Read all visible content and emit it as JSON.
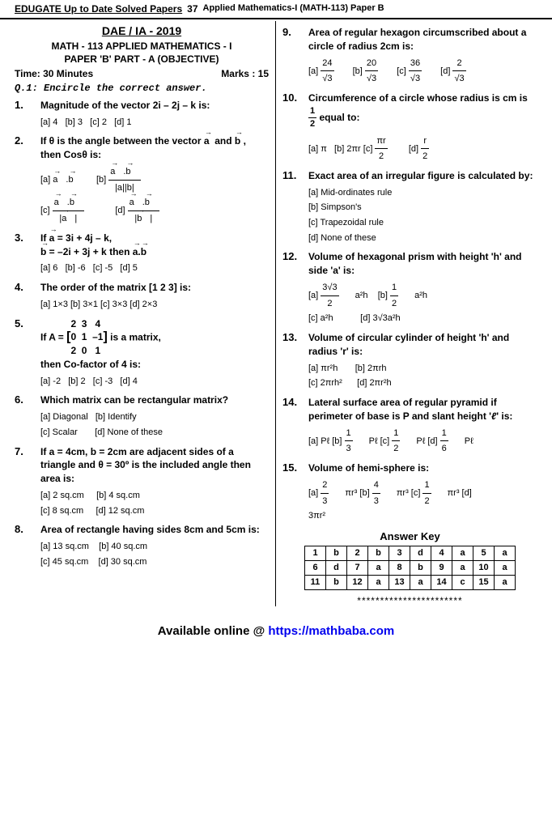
{
  "header": {
    "left": "EDUGATE Up to Date Solved Papers",
    "page": "37",
    "right": "Applied Mathematics-I (MATH-113) Paper B"
  },
  "exam": {
    "title1": "DAE / IA - 2019",
    "title2": "MATH - 113  APPLIED MATHEMATICS - I",
    "title3": "PAPER 'B' PART - A (OBJECTIVE)",
    "time": "Time: 30 Minutes",
    "marks": "Marks : 15",
    "q1": "Q.1: Encircle the correct answer."
  },
  "left_questions": [
    {
      "num": "1.",
      "text": "Magnitude of the vector <b>2i – 2j – k</b> is:",
      "opts": "[a] 4&nbsp;&nbsp;&nbsp;[b] 3&nbsp;&nbsp;&nbsp;[c] 2&nbsp;&nbsp;&nbsp;[d] 1"
    },
    {
      "num": "2.",
      "text": "If θ is the angle between the vector <span class='vec'>a</span>&nbsp; and <span class='vec'>b</span>&nbsp;, then Cosθ is:",
      "opts": "[a] <span class='vec'>a</span>.<span class='vec'>b</span>&nbsp;&nbsp;&nbsp;&nbsp;&nbsp;&nbsp;[b] <span class='frac'><span class='num'><span class='vec'>a</span>.<span class='vec'>b</span></span><span class='den'>|a||b|</span></span><br>[c] <span class='frac'><span class='num'><span class='vec'>a</span>.<span class='vec'>b</span></span><span class='den'>|<span class='vec'>a</span>|</span></span>&nbsp;&nbsp;&nbsp;&nbsp;&nbsp;&nbsp;[d] <span class='frac'><span class='num'><span class='vec'>a</span>.<span class='vec'>b</span></span><span class='den'>|<span class='vec'>b</span>|</span></span>"
    },
    {
      "num": "3.",
      "text": "If <span class='vec'>a</span> = 3i + 4j – k,<br><span class='vec'>b</span> = –2i + 3j + k then <span class='vec'>a</span>.<span class='vec'>b</span>",
      "opts": "[a] 6&nbsp;&nbsp;&nbsp;[b] -6&nbsp;&nbsp;&nbsp;[c] -5&nbsp;&nbsp;&nbsp;[d] 5"
    },
    {
      "num": "4.",
      "text": "The order of the matrix [1  2  3] is:",
      "opts": "[a] 1×3  [b] 3×1  [c] 3×3  [d] 2×3"
    },
    {
      "num": "5.",
      "text": "If A = <span style='font-size:16px'>[</span><span style='display:inline-block;vertical-align:middle'><span style='display:block'>2&nbsp;&nbsp;3&nbsp;&nbsp;&nbsp;4</span><span style='display:block'>0&nbsp;&nbsp;1&nbsp;&nbsp;–1</span><span style='display:block'>2&nbsp;&nbsp;0&nbsp;&nbsp;&nbsp;1</span></span><span style='font-size:16px'>]</span> is a matrix,<br>then Co-factor of 4 is:",
      "opts": "[a] -2&nbsp;&nbsp;&nbsp;[b] 2&nbsp;&nbsp;&nbsp;[c] -3&nbsp;&nbsp;&nbsp;[d] 4"
    },
    {
      "num": "6.",
      "text": "Which matrix can be rectangular matrix?",
      "opts": "[a] Diagonal&nbsp;&nbsp;&nbsp;[b] Identify<br>[c] Scalar&nbsp;&nbsp;&nbsp;&nbsp;&nbsp;&nbsp;&nbsp;[d] None of these"
    },
    {
      "num": "7.",
      "text": "If a = 4cm, b = 2cm are adjacent sides of a triangle and θ = 30º is the included angle then area is:",
      "opts": "[a] 2 sq.cm&nbsp;&nbsp;&nbsp;&nbsp;&nbsp;[b] 4 sq.cm<br>[c] 8 sq.cm&nbsp;&nbsp;&nbsp;&nbsp;&nbsp;[d] 12 sq.cm"
    },
    {
      "num": "8.",
      "text": "Area of rectangle having sides 8cm and 5cm is:",
      "opts": "[a] 13 sq.cm&nbsp;&nbsp;&nbsp;&nbsp;[b] 40 sq.cm<br>[c] 45 sq.cm&nbsp;&nbsp;&nbsp;&nbsp;[d] 30 sq.cm"
    }
  ],
  "right_questions": [
    {
      "num": "9.",
      "text": "Area of regular hexagon circumscribed about a circle of radius 2cm is:",
      "opts": "[a] <span class='frac'><span class='num'>24</span><span class='den'>√3</span></span> [b] <span class='frac'><span class='num'>20</span><span class='den'>√3</span></span> [c] <span class='frac'><span class='num'>36</span><span class='den'>√3</span></span> [d] <span class='frac'><span class='num'>2</span><span class='den'>√3</span></span>"
    },
    {
      "num": "10.",
      "text": "Circumference of a circle whose radius is cm is <span class='frac'><span class='num'>1</span><span class='den'>2</span></span> equal to:",
      "opts": "[a] π&nbsp;&nbsp;&nbsp;[b] 2πr&nbsp;[c] <span class='frac'><span class='num'>πr</span><span class='den'>2</span></span>&nbsp;&nbsp;[d] <span class='frac'><span class='num'>r</span><span class='den'>2</span></span>"
    },
    {
      "num": "11.",
      "text": "Exact area of an irregular figure is calculated by:",
      "opts": "[a] Mid-ordinates rule<br>[b] Simpson's<br>[c] Trapezoidal rule<br>[d] None of these"
    },
    {
      "num": "12.",
      "text": "Volume of hexagonal prism with height 'h' and side 'a' is:",
      "opts": "[a] <span class='frac'><span class='num'>3√3</span><span class='den'>2</span></span>a²h&nbsp;&nbsp;&nbsp;&nbsp;[b] <span class='frac'><span class='num'>1</span><span class='den'>2</span></span>a²h<br>[c] a²h&nbsp;&nbsp;&nbsp;&nbsp;&nbsp;&nbsp;&nbsp;&nbsp;&nbsp;&nbsp;&nbsp;[d] 3√3a²h"
    },
    {
      "num": "13.",
      "text": "Volume of circular cylinder of height 'h' and radius 'r' is:",
      "opts": "[a] πr²h&nbsp;&nbsp;&nbsp;&nbsp;&nbsp;&nbsp;&nbsp;[b] 2πrh<br>[c] 2πrh²&nbsp;&nbsp;&nbsp;&nbsp;&nbsp;&nbsp;[d] 2πr²h"
    },
    {
      "num": "14.",
      "text": "Lateral surface area of regular pyramid if perimeter of base is P and slant height '<i>ℓ</i>' is:",
      "opts": "[a] Pℓ [b] <span class='frac'><span class='num'>1</span><span class='den'>3</span></span>Pℓ [c] <span class='frac'><span class='num'>1</span><span class='den'>2</span></span>Pℓ [d] <span class='frac'><span class='num'>1</span><span class='den'>6</span></span>Pℓ"
    },
    {
      "num": "15.",
      "text": "Volume of hemi-sphere is:",
      "opts": "[a] <span class='frac'><span class='num'>2</span><span class='den'>3</span></span>πr³ [b] <span class='frac'><span class='num'>4</span><span class='den'>3</span></span>πr³ [c] <span class='frac'><span class='num'>1</span><span class='den'>2</span></span>πr³ [d]<br>3πr²"
    }
  ],
  "answer_key": {
    "title": "Answer Key",
    "rows": [
      [
        "1",
        "b",
        "2",
        "b",
        "3",
        "d",
        "4",
        "a",
        "5",
        "a"
      ],
      [
        "6",
        "d",
        "7",
        "a",
        "8",
        "b",
        "9",
        "a",
        "10",
        "a"
      ],
      [
        "11",
        "b",
        "12",
        "a",
        "13",
        "a",
        "14",
        "c",
        "15",
        "a"
      ]
    ]
  },
  "stars": "***********************",
  "footer": {
    "text": "Available online @ ",
    "url": "https://mathbaba.com"
  }
}
